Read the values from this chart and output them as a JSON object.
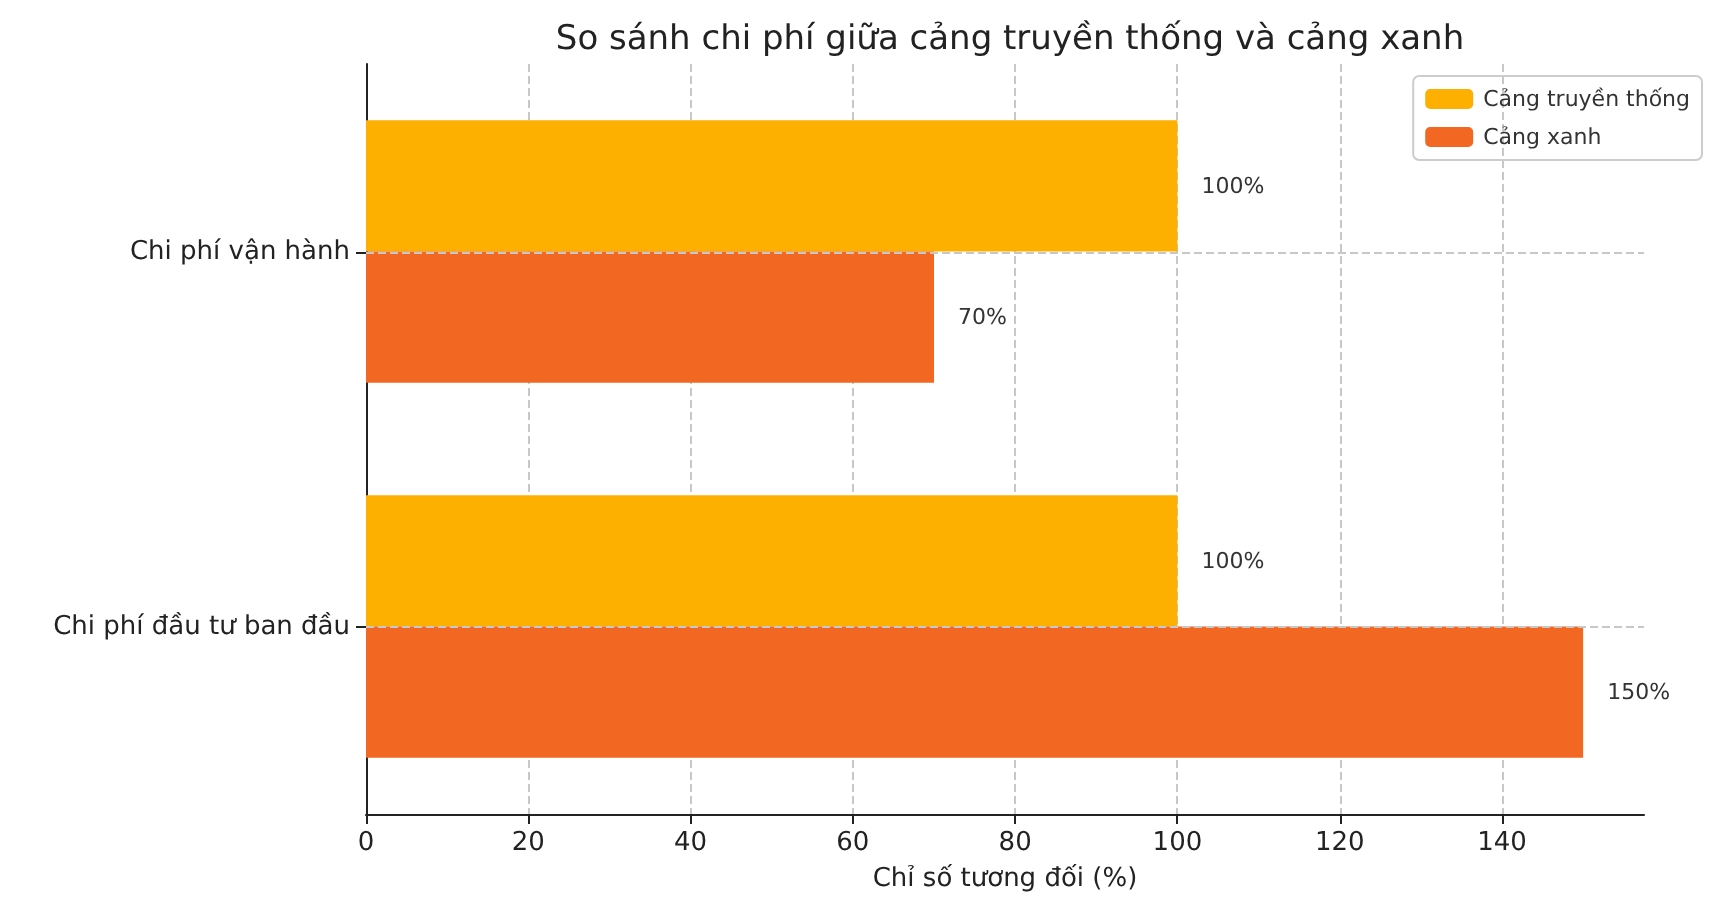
{
  "chart_data": {
    "type": "bar",
    "orientation": "horizontal",
    "title": "So sánh chi phí giữa cảng truyền thống và cảng xanh",
    "xlabel": "Chỉ số tương đối (%)",
    "categories": [
      "Chi phí vận hành",
      "Chi phí đầu tư ban đầu"
    ],
    "series": [
      {
        "name": "Cảng truyền thống",
        "color": "#fdb000",
        "values": [
          100,
          100
        ],
        "value_labels": [
          "100%",
          "100%"
        ]
      },
      {
        "name": "Cảng xanh",
        "color": "#f26722",
        "values": [
          70,
          150
        ],
        "value_labels": [
          "70%",
          "150%"
        ]
      }
    ],
    "xlim": [
      0,
      157.5
    ],
    "xticks": [
      0,
      20,
      40,
      60,
      80,
      100,
      120,
      140
    ],
    "grid": true,
    "legend": "top right"
  }
}
